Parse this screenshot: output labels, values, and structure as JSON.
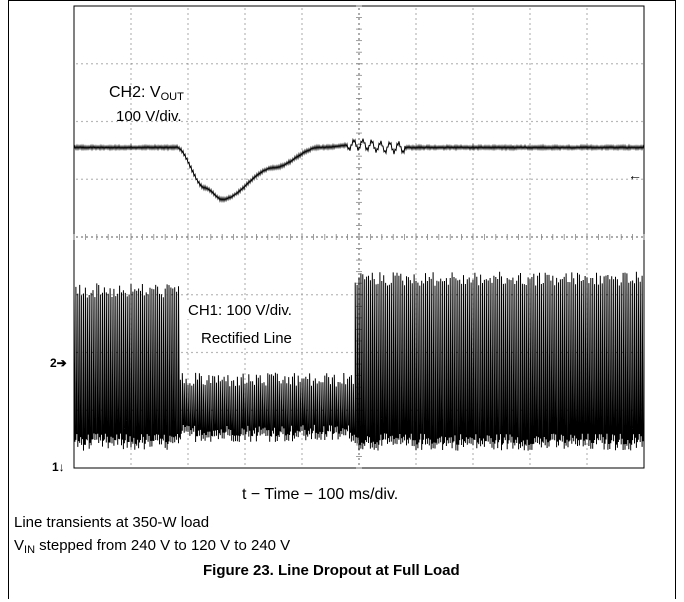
{
  "chart_data": {
    "type": "line",
    "title": "Line Dropout at Full Load",
    "xlabel": "t − Time − 100 ms/div.",
    "grid": true,
    "divisions": {
      "x": 10,
      "y": 8
    },
    "series": [
      {
        "name": "CH2: VOUT",
        "scale": "100 V/div.",
        "description_points_div": [
          [
            0,
            5.55
          ],
          [
            1.8,
            5.55
          ],
          [
            2.3,
            4.85
          ],
          [
            2.6,
            4.65
          ],
          [
            3.5,
            5.2
          ],
          [
            4.3,
            5.55
          ],
          [
            5.0,
            5.6
          ],
          [
            5.5,
            5.55
          ],
          [
            10,
            5.55
          ]
        ]
      },
      {
        "name": "CH1: Rectified Line",
        "scale": "100 V/div.",
        "segments_div": [
          {
            "t_start": 0,
            "t_end": 1.85,
            "envelope_top": 3.2,
            "envelope_bottom": 0.3
          },
          {
            "t_start": 1.85,
            "t_end": 4.9,
            "envelope_top": 1.65,
            "envelope_bottom": 0.45
          },
          {
            "t_start": 4.9,
            "t_end": 10,
            "envelope_top": 3.4,
            "envelope_bottom": 0.3
          }
        ]
      }
    ]
  },
  "labels": {
    "ch2_main": "CH2: V",
    "ch2_sub": "OUT",
    "ch2_scale": "100 V/div.",
    "ch1_scale": "CH1: 100 V/div.",
    "ch1_name": "Rectified  Line",
    "marker_ch2": "2➔",
    "marker_ch1": "1↓",
    "trigger_arrow": "←"
  },
  "caption": {
    "xlabel": "t − Time − 100 ms/div.",
    "line1": "Line transients at 350-W load",
    "line2_prefix": "V",
    "line2_sub": "IN",
    "line2_rest": " stepped from 240 V to 120 V to 240 V",
    "figure": "Figure 23. Line Dropout at Full Load"
  },
  "colors": {
    "trace": "#000000",
    "grid": "#888888",
    "background": "#ffffff"
  }
}
